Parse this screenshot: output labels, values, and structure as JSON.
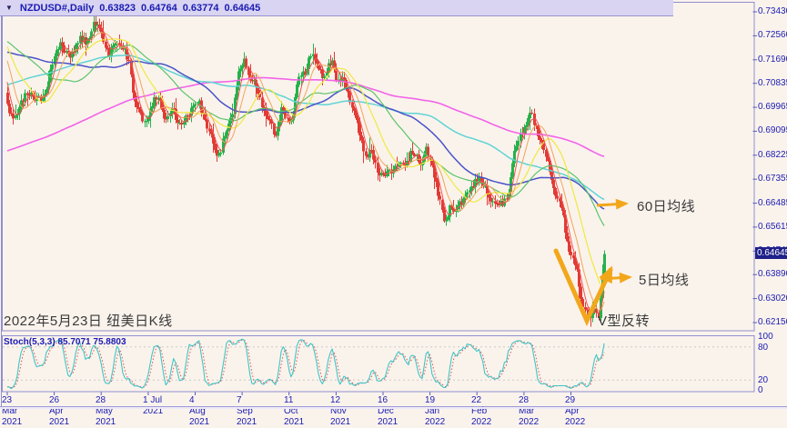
{
  "title_bar": {
    "symbol": "NZDUSD#,Daily",
    "open": "0.63823",
    "high": "0.64764",
    "low": "0.63774",
    "close": "0.64645",
    "dropdown_icon": "triangle-down"
  },
  "price_axis": {
    "labels": [
      "0.73430",
      "0.72560",
      "0.71690",
      "0.70835",
      "0.69965",
      "0.69095",
      "0.68225",
      "0.67355",
      "0.66485",
      "0.65615",
      "0.64745",
      "0.63890",
      "0.63020",
      "0.62150"
    ],
    "current_price": "0.64645"
  },
  "time_axis": {
    "labels": [
      "23 Mar 2021",
      "26 Apr 2021",
      "28 May 2021",
      "1 Jul 2021",
      "4 Aug 2021",
      "7 Sep 2021",
      "11 Oct 2021",
      "12 Nov 2021",
      "16 Dec 2021",
      "19 Jan 2022",
      "22 Feb 2022",
      "28 Mar 2022",
      "29 Apr 2022"
    ]
  },
  "stoch_panel": {
    "label": "Stoch(5,3,3) 85.7071 75.8803",
    "axis_labels": [
      "100",
      "80",
      "20",
      "0"
    ],
    "k_value": 85.7071,
    "d_value": 75.8803
  },
  "annotations": {
    "ma60_label": "60日均线",
    "ma5_label": "5日均线",
    "v_label": "V型反转",
    "caption": "2022年5月23日 纽美日K线"
  },
  "colors": {
    "background": "#faf3ec",
    "title_bg": "#d8d4f2",
    "panel_border": "#8f8fd0",
    "axis_text": "#1b1bb3",
    "bull_candle": "#26b24b",
    "bear_candle": "#e23b36",
    "current_price_bg": "#20208a",
    "annotation_orange": "#f2a71b",
    "stoch_k": "#3fc6c6",
    "stoch_d": "#e05252",
    "dotted_level": "#c9c9c9",
    "caption_text": "#3a3a3a"
  },
  "chart_data": {
    "type": "candlestick",
    "symbol": "NZDUSD#",
    "timeframe": "Daily",
    "visible_price_range": [
      0.6179,
      0.7359
    ],
    "axis_tick_values": [
      0.7343,
      0.7256,
      0.7169,
      0.70835,
      0.69965,
      0.69095,
      0.68225,
      0.67355,
      0.66485,
      0.65615,
      0.64745,
      0.6389,
      0.6302,
      0.6215
    ],
    "last_candle": {
      "open": 0.63823,
      "high": 0.64764,
      "low": 0.63774,
      "close": 0.64645
    },
    "candle_count": 306,
    "tick_candle_indices": [
      0,
      24,
      48,
      72,
      96,
      120,
      144,
      168,
      192,
      216,
      240,
      264,
      288
    ],
    "price_anchors": [
      [
        -200,
        0.648
      ],
      [
        -175,
        0.656
      ],
      [
        -150,
        0.66
      ],
      [
        -125,
        0.663
      ],
      [
        -100,
        0.672
      ],
      [
        -80,
        0.69
      ],
      [
        -60,
        0.706
      ],
      [
        -40,
        0.718
      ],
      [
        -25,
        0.728
      ],
      [
        -18,
        0.734
      ],
      [
        -12,
        0.722
      ],
      [
        -6,
        0.726
      ],
      [
        -2,
        0.71
      ],
      [
        0,
        0.699
      ],
      [
        3,
        0.695
      ],
      [
        7,
        0.701
      ],
      [
        12,
        0.706
      ],
      [
        17,
        0.7005
      ],
      [
        22,
        0.712
      ],
      [
        27,
        0.723
      ],
      [
        32,
        0.717
      ],
      [
        36,
        0.725
      ],
      [
        40,
        0.722
      ],
      [
        44,
        0.73
      ],
      [
        48,
        0.726
      ],
      [
        52,
        0.7185
      ],
      [
        57,
        0.7245
      ],
      [
        62,
        0.715
      ],
      [
        66,
        0.7
      ],
      [
        69,
        0.6925
      ],
      [
        73,
        0.699
      ],
      [
        77,
        0.704
      ],
      [
        81,
        0.696
      ],
      [
        85,
        0.699
      ],
      [
        89,
        0.693
      ],
      [
        93,
        0.699
      ],
      [
        97,
        0.701
      ],
      [
        101,
        0.696
      ],
      [
        104,
        0.688
      ],
      [
        107,
        0.6815
      ],
      [
        110,
        0.688
      ],
      [
        114,
        0.6945
      ],
      [
        118,
        0.712
      ],
      [
        121,
        0.7155
      ],
      [
        125,
        0.71
      ],
      [
        129,
        0.703
      ],
      [
        133,
        0.696
      ],
      [
        136,
        0.689
      ],
      [
        140,
        0.6985
      ],
      [
        144,
        0.6935
      ],
      [
        148,
        0.706
      ],
      [
        152,
        0.714
      ],
      [
        155,
        0.719
      ],
      [
        158,
        0.715
      ],
      [
        162,
        0.712
      ],
      [
        166,
        0.7155
      ],
      [
        170,
        0.709
      ],
      [
        174,
        0.706
      ],
      [
        178,
        0.695
      ],
      [
        182,
        0.685
      ],
      [
        186,
        0.6815
      ],
      [
        190,
        0.676
      ],
      [
        194,
        0.6745
      ],
      [
        198,
        0.68
      ],
      [
        202,
        0.678
      ],
      [
        206,
        0.683
      ],
      [
        210,
        0.679
      ],
      [
        214,
        0.684
      ],
      [
        218,
        0.676
      ],
      [
        221,
        0.666
      ],
      [
        223,
        0.6555
      ],
      [
        226,
        0.664
      ],
      [
        230,
        0.6625
      ],
      [
        234,
        0.668
      ],
      [
        238,
        0.67
      ],
      [
        241,
        0.674
      ],
      [
        244,
        0.67
      ],
      [
        247,
        0.665
      ],
      [
        250,
        0.666
      ],
      [
        253,
        0.663
      ],
      [
        256,
        0.671
      ],
      [
        259,
        0.682
      ],
      [
        262,
        0.689
      ],
      [
        265,
        0.694
      ],
      [
        268,
        0.696
      ],
      [
        271,
        0.691
      ],
      [
        274,
        0.683
      ],
      [
        277,
        0.676
      ],
      [
        280,
        0.667
      ],
      [
        283,
        0.663
      ],
      [
        286,
        0.653
      ],
      [
        288,
        0.646
      ],
      [
        291,
        0.64
      ],
      [
        293,
        0.631
      ],
      [
        296,
        0.6255
      ],
      [
        298,
        0.623
      ],
      [
        300,
        0.629
      ],
      [
        302,
        0.625
      ],
      [
        304,
        0.637
      ],
      [
        305,
        0.64645
      ]
    ],
    "ma_lines": [
      {
        "name": "MA200",
        "period": 200,
        "color": "#f263e8",
        "width": 1.6
      },
      {
        "name": "MA100",
        "period": 100,
        "color": "#5fd4d4",
        "width": 1.5
      },
      {
        "name": "MA60",
        "period": 60,
        "color": "#4953c8",
        "width": 1.5,
        "label": "60日均线"
      },
      {
        "name": "MA40",
        "period": 40,
        "color": "#5cc46a",
        "width": 1.2
      },
      {
        "name": "MA20",
        "period": 20,
        "color": "#efe93f",
        "width": 1.2
      },
      {
        "name": "MA10",
        "period": 10,
        "color": "#f2a45c",
        "width": 1.0
      },
      {
        "name": "MA5",
        "period": 5,
        "color": "#ef5350",
        "width": 1.0,
        "label": "5日均线"
      }
    ],
    "stochastic": {
      "settings": [
        5,
        3,
        3
      ],
      "k": 85.7071,
      "d": 75.8803,
      "levels": [
        80,
        20
      ],
      "range": [
        0,
        100
      ]
    }
  }
}
